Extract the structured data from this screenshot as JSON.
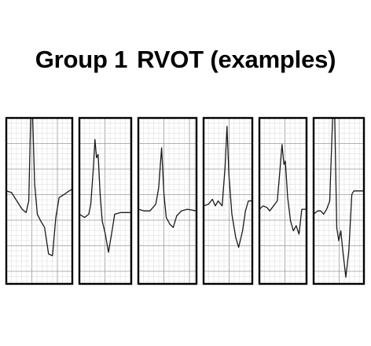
{
  "title": {
    "group": "Group 1",
    "label": "RVOT (examples)"
  },
  "colors": {
    "background": "#ffffff",
    "frame": "#000000",
    "grid_minor": "#d9d9d9",
    "grid_major": "#9a9a9a",
    "trace": "#1a1a1a"
  },
  "strips": [
    {
      "id": 1,
      "trace_shape": "tall-R-deep-S"
    },
    {
      "id": 2,
      "trace_shape": "notched-R-deep-S"
    },
    {
      "id": 3,
      "trace_shape": "tall-R-negative-T"
    },
    {
      "id": 4,
      "trace_shape": "tall-R-deep-S"
    },
    {
      "id": 5,
      "trace_shape": "notched-R-notched-S"
    },
    {
      "id": 6,
      "trace_shape": "tall-R-deep-S"
    }
  ]
}
